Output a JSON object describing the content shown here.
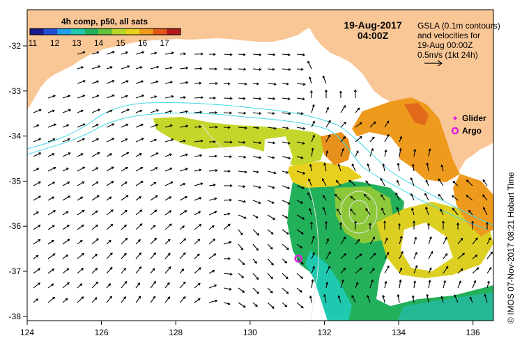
{
  "header": {
    "composite_label": "4h comp, p50, all sats",
    "date": "19-Aug-2017",
    "time": "04:00Z"
  },
  "colorbar": {
    "ticks": [
      "11",
      "12",
      "13",
      "14",
      "15",
      "16",
      "17"
    ],
    "colors": [
      "#1a1a8c",
      "#1f4fd8",
      "#1fa0e8",
      "#1fc9b0",
      "#22b05a",
      "#63c23a",
      "#b6d62a",
      "#e8d01e",
      "#ee9a1c",
      "#e0561a",
      "#b01a1a"
    ]
  },
  "info": {
    "line1": "GSLA (0.1m contours)",
    "line2": "and velocities for",
    "line3": "19-Aug 00:00Z",
    "line4": "0.5m/s (1kt 24h)"
  },
  "legend": {
    "glider": "Glider",
    "argo": "Argo",
    "marker_color": "#e020e0"
  },
  "credit": "© IMOS 07-Nov-2017 08:21 Hobart Time",
  "axes": {
    "x_ticks": [
      "124",
      "126",
      "128",
      "130",
      "132",
      "134",
      "136"
    ],
    "y_ticks": [
      "-32",
      "-33",
      "-34",
      "-35",
      "-36",
      "-37",
      "-38"
    ]
  },
  "colors": {
    "land": "#f9c695",
    "ocean": "#ffffff",
    "contour": "#3fd8e8",
    "gsla_contour": "#e6e6e6",
    "arrow": "#000000",
    "frame": "#000000"
  },
  "features": {
    "argo_float": {
      "lon": 131.3,
      "lat": -36.72
    }
  }
}
